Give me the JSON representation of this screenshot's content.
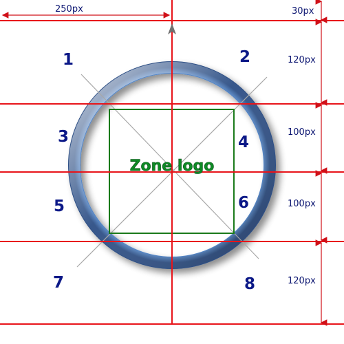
{
  "diagram": {
    "dimensions": {
      "top_width_label": "250px",
      "top_height_label": "30px",
      "row1_label": "120px",
      "row2_label": "100px",
      "row3_label": "100px",
      "row4_label": "120px"
    },
    "logo_label": "Zone logo",
    "zones": [
      "1",
      "2",
      "3",
      "4",
      "5",
      "6",
      "7",
      "8"
    ],
    "colors": {
      "guide_line": "#e8141a",
      "arrow": "#d01018",
      "logo_box": "#1a7a1a",
      "diagonal": "#a8a8a8",
      "ring": "#6b9fd8",
      "zone_text": "#0b1887",
      "logo_text": "#0e8a25"
    }
  }
}
